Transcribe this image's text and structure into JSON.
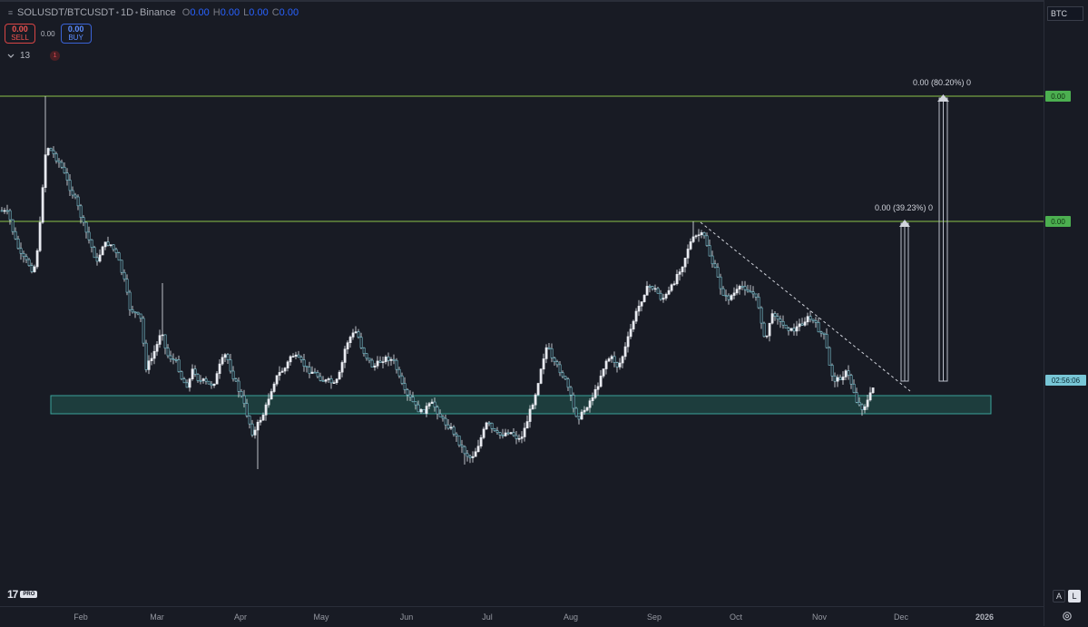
{
  "legend": {
    "symbol": "SOLUSDT/BTCUSDT",
    "interval": "1D",
    "exchange": "Binance",
    "o_key": "O",
    "o_val": "0.00",
    "h_key": "H",
    "h_val": "0.00",
    "l_key": "L",
    "l_val": "0.00",
    "c_key": "C",
    "c_val": "0.00"
  },
  "trade": {
    "sell_price": "0.00",
    "sell_label": "SELL",
    "spread": "0.00",
    "buy_price": "0.00",
    "buy_label": "BUY"
  },
  "indicators": {
    "count": "13",
    "alert": "1"
  },
  "price_axis": {
    "currency": "BTC",
    "tag_top": "0.00",
    "tag_mid": "0.00",
    "countdown": "02:56:06"
  },
  "measures": {
    "upper": "0.00 (80.20%) 0",
    "lower": "0.00 (39.23%) 0"
  },
  "time_axis": [
    "Feb",
    "Mar",
    "Apr",
    "May",
    "Jun",
    "Jul",
    "Aug",
    "Sep",
    "Oct",
    "Nov",
    "Dec",
    "2026"
  ],
  "scale": {
    "auto": "A",
    "log": "L"
  },
  "colors": {
    "background": "#181b24",
    "candle": "#e8eaf0",
    "candle_dark": "#7ec8d6",
    "resistance_line": "#8bc34a",
    "support_zone": "#3aa39a",
    "price_tag_green": "#4caf50",
    "countdown_tag": "#78c6d6"
  },
  "icons": {
    "collapse": "chevron-down-icon",
    "settings": "gear-icon",
    "logo": "tradingview-logo"
  }
}
